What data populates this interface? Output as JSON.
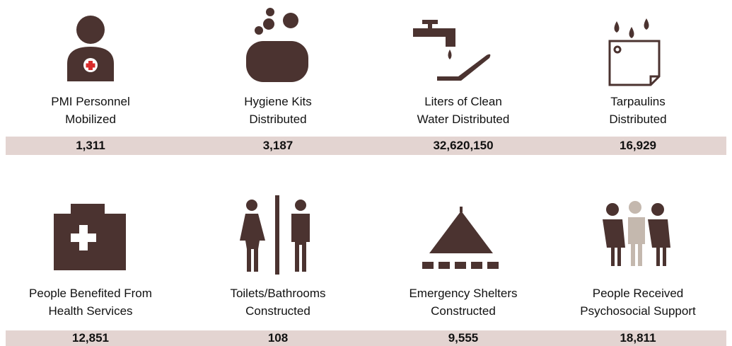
{
  "items": [
    {
      "label": [
        "PMI Personnel",
        "Mobilized"
      ],
      "value": "1,311"
    },
    {
      "label": [
        "Hygiene Kits",
        "Distributed"
      ],
      "value": "3,187"
    },
    {
      "label": [
        "Liters of Clean",
        "Water Distributed"
      ],
      "value": "32,620,150"
    },
    {
      "label": [
        "Tarpaulins",
        "Distributed"
      ],
      "value": "16,929"
    },
    {
      "label": [
        "People Benefited From",
        "Health Services"
      ],
      "value": "12,851"
    },
    {
      "label": [
        "Toilets/Bathrooms",
        "Constructed"
      ],
      "value": "108"
    },
    {
      "label": [
        "Emergency Shelters",
        "Constructed"
      ],
      "value": "9,555"
    },
    {
      "label": [
        "People Received",
        "Psychosocial Support"
      ],
      "value": "18,811"
    }
  ]
}
